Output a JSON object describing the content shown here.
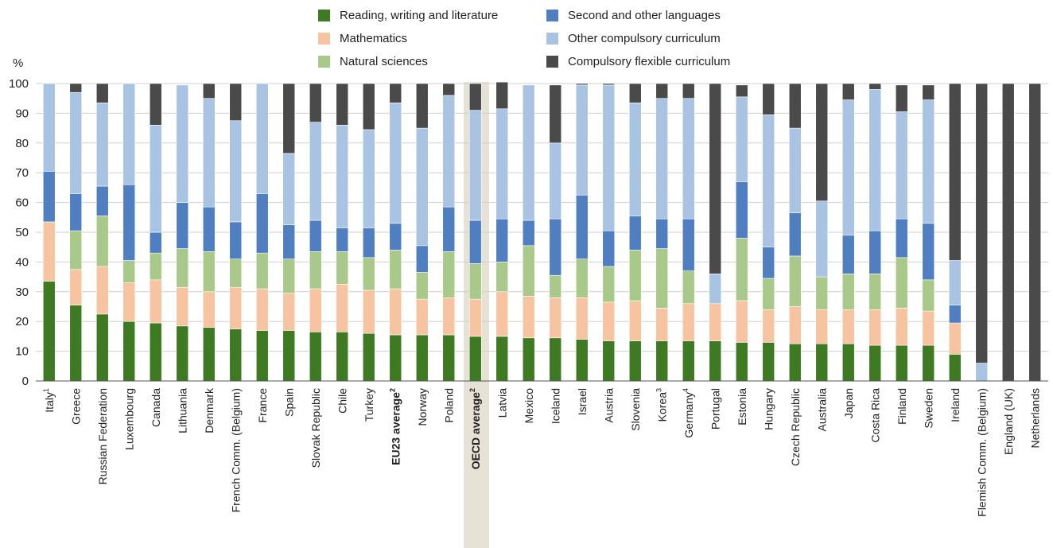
{
  "chart_data": {
    "type": "bar",
    "stacked": true,
    "ylabel": "%",
    "ylim": [
      0,
      100
    ],
    "yticks": [
      0,
      10,
      20,
      30,
      40,
      50,
      60,
      70,
      80,
      90,
      100
    ],
    "grid": true,
    "legend_position": "top",
    "highlighted_category": "OECD average",
    "categories": [
      {
        "label": "Italy",
        "sup": "1",
        "bold": false
      },
      {
        "label": "Greece",
        "sup": "",
        "bold": false
      },
      {
        "label": "Russian Federation",
        "sup": "",
        "bold": false
      },
      {
        "label": "Luxembourg",
        "sup": "",
        "bold": false
      },
      {
        "label": "Canada",
        "sup": "",
        "bold": false
      },
      {
        "label": "Lithuania",
        "sup": "",
        "bold": false
      },
      {
        "label": "Denmark",
        "sup": "",
        "bold": false
      },
      {
        "label": "French Comm. (Belgium)",
        "sup": "",
        "bold": false
      },
      {
        "label": "France",
        "sup": "",
        "bold": false
      },
      {
        "label": "Spain",
        "sup": "",
        "bold": false
      },
      {
        "label": "Slovak Republic",
        "sup": "",
        "bold": false
      },
      {
        "label": "Chile",
        "sup": "",
        "bold": false
      },
      {
        "label": "Turkey",
        "sup": "",
        "bold": false
      },
      {
        "label": "EU23 average",
        "sup": "2",
        "bold": true
      },
      {
        "label": "Norway",
        "sup": "",
        "bold": false
      },
      {
        "label": "Poland",
        "sup": "",
        "bold": false
      },
      {
        "label": "OECD average",
        "sup": "2",
        "bold": true
      },
      {
        "label": "Latvia",
        "sup": "",
        "bold": false
      },
      {
        "label": "Mexico",
        "sup": "",
        "bold": false
      },
      {
        "label": "Iceland",
        "sup": "",
        "bold": false
      },
      {
        "label": "Israel",
        "sup": "",
        "bold": false
      },
      {
        "label": "Austria",
        "sup": "",
        "bold": false
      },
      {
        "label": "Slovenia",
        "sup": "",
        "bold": false
      },
      {
        "label": "Korea",
        "sup": "3",
        "bold": false
      },
      {
        "label": "Germany",
        "sup": "4",
        "bold": false
      },
      {
        "label": "Portugal",
        "sup": "",
        "bold": false
      },
      {
        "label": "Estonia",
        "sup": "",
        "bold": false
      },
      {
        "label": "Hungary",
        "sup": "",
        "bold": false
      },
      {
        "label": "Czech Republic",
        "sup": "",
        "bold": false
      },
      {
        "label": "Australia",
        "sup": "",
        "bold": false
      },
      {
        "label": "Japan",
        "sup": "",
        "bold": false
      },
      {
        "label": "Costa Rica",
        "sup": "",
        "bold": false
      },
      {
        "label": "Finland",
        "sup": "",
        "bold": false
      },
      {
        "label": "Sweden",
        "sup": "",
        "bold": false
      },
      {
        "label": "Ireland",
        "sup": "",
        "bold": false
      },
      {
        "label": "Flemish Comm. (Belgium)",
        "sup": "",
        "bold": false
      },
      {
        "label": "England (UK)",
        "sup": "",
        "bold": false
      },
      {
        "label": "Netherlands",
        "sup": "",
        "bold": false
      }
    ],
    "series": [
      {
        "name": "Reading, writing and literature",
        "color": "#3d7a22",
        "values": [
          33.5,
          25.5,
          22.5,
          20,
          19.5,
          18.5,
          18,
          17.5,
          17,
          17,
          16.5,
          16.5,
          16,
          15.5,
          15.5,
          15.5,
          15,
          15,
          14.5,
          14.5,
          14,
          13.5,
          13.5,
          13.5,
          13.5,
          13.5,
          13,
          13,
          12.5,
          12.5,
          12.5,
          12,
          12,
          12,
          9,
          0,
          0,
          0
        ]
      },
      {
        "name": "Mathematics",
        "color": "#f6c4a1",
        "values": [
          20,
          12,
          16,
          13,
          14.5,
          13,
          12,
          14,
          14,
          12.5,
          14.5,
          16,
          14.5,
          15.5,
          12,
          12.5,
          12.5,
          15,
          14,
          13.5,
          14,
          13,
          13.5,
          11,
          12.5,
          12.5,
          14,
          11,
          12.5,
          11.5,
          11.5,
          12,
          12.5,
          11.5,
          10.5,
          0,
          0,
          0
        ]
      },
      {
        "name": "Natural sciences",
        "color": "#a8c98a",
        "values": [
          0,
          13,
          17,
          7.5,
          9,
          13,
          13.5,
          9.5,
          12,
          11.5,
          12.5,
          11,
          11,
          13,
          9,
          15.5,
          12,
          10,
          17,
          7.5,
          13,
          12,
          17,
          20,
          11,
          0,
          21,
          10.5,
          17,
          11,
          12,
          12,
          17,
          10.5,
          0,
          0,
          0,
          0
        ]
      },
      {
        "name": "Second and other languages",
        "color": "#4f7fc0",
        "values": [
          17,
          12.5,
          10,
          25.5,
          7,
          15.5,
          15,
          12.5,
          20,
          11.5,
          10.5,
          8,
          10,
          9,
          9,
          15,
          14.5,
          14.5,
          8.5,
          19,
          21.5,
          12,
          11.5,
          10,
          17.5,
          0,
          19,
          10.5,
          14.5,
          0,
          13,
          14.5,
          13,
          19,
          6,
          0,
          0,
          0
        ]
      },
      {
        "name": "Other compulsory curriculum",
        "color": "#a9c4e3",
        "values": [
          29.5,
          34,
          28,
          34,
          36,
          39.5,
          36.5,
          34,
          37,
          24,
          33,
          34.5,
          33,
          40.5,
          39.5,
          37.5,
          37,
          37,
          45.5,
          25.5,
          37,
          49,
          38,
          40.5,
          40.5,
          10,
          28.5,
          44.5,
          28.5,
          25.5,
          45.5,
          47.5,
          36,
          41.5,
          15,
          6,
          0,
          0
        ]
      },
      {
        "name": "Compulsory flexible curriculum",
        "color": "#4a4a4a",
        "values": [
          0,
          3,
          6.5,
          0,
          14,
          0,
          5,
          12.5,
          0,
          23.5,
          13,
          14,
          15.5,
          6.5,
          15,
          4,
          9,
          9,
          0,
          19.5,
          0.5,
          0.5,
          6.5,
          5,
          5,
          64,
          4,
          10.5,
          15,
          39.5,
          5.5,
          2,
          9,
          5,
          59.5,
          94,
          100,
          100
        ]
      }
    ]
  }
}
